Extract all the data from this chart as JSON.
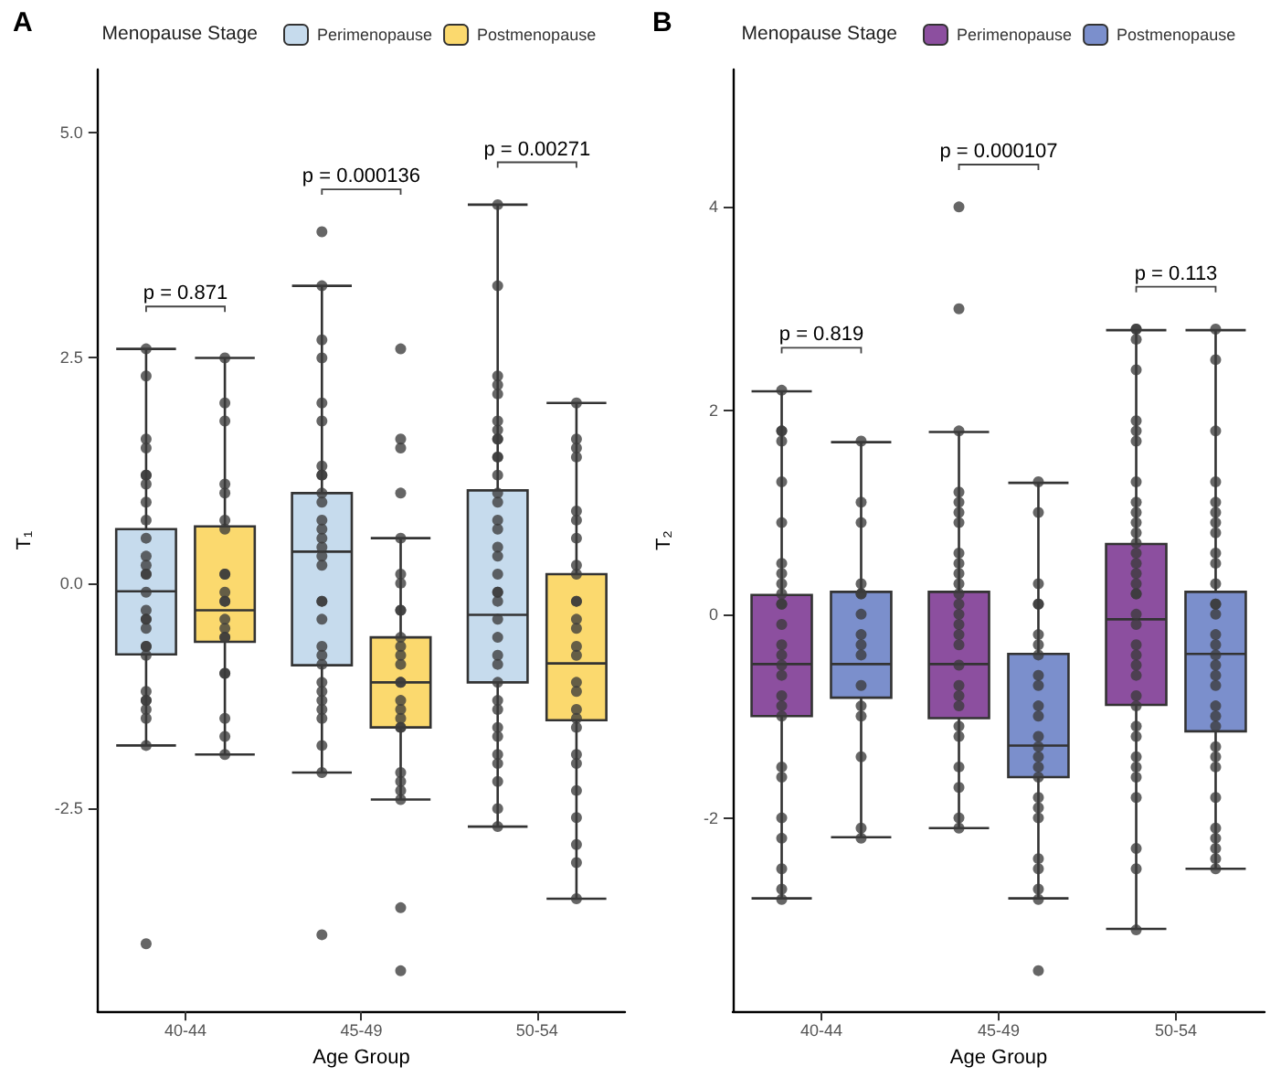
{
  "chart_data": [
    {
      "type": "box",
      "title": "A",
      "xlabel": "Age Group",
      "ylabel": "T₁",
      "legend_title": "Menopause Stage",
      "legend": "top",
      "grid": false,
      "marker": "circle",
      "categories": [
        "40-44",
        "45-49",
        "50-54"
      ],
      "ylim": [
        -4.75,
        5.7
      ],
      "yticks": [
        {
          "value": -2.5,
          "label": "-2.5"
        },
        {
          "value": 0,
          "label": "0.0"
        },
        {
          "value": 2.5,
          "label": "2.5"
        },
        {
          "value": 5,
          "label": "5.0"
        }
      ],
      "annotations": [
        "p = 0.871",
        "p = 0.000136",
        "p = 0.00271"
      ],
      "series": [
        {
          "name": "Perimenopause",
          "type": "box",
          "color": "#c6dbed",
          "boxes": [
            {
              "low": -1.8,
              "q1": -0.79,
              "median": -0.09,
              "q3": 0.6,
              "high": 2.6
            },
            {
              "low": -2.1,
              "q1": -0.91,
              "median": 0.35,
              "q3": 1.0,
              "high": 3.3
            },
            {
              "low": -2.7,
              "q1": -1.1,
              "median": -0.35,
              "q3": 1.03,
              "high": 4.2
            }
          ]
        },
        {
          "name": "Postmenopause",
          "type": "box",
          "color": "#fbd96e",
          "boxes": [
            {
              "low": -1.9,
              "q1": -0.65,
              "median": -0.3,
              "q3": 0.63,
              "high": 2.5
            },
            {
              "low": -2.4,
              "q1": -1.6,
              "median": -1.1,
              "q3": -0.6,
              "high": 0.5
            },
            {
              "low": -3.5,
              "q1": -1.52,
              "median": -0.89,
              "q3": 0.1,
              "high": 2.0
            }
          ]
        },
        {
          "type": "scatter",
          "color": "#3b3b3b",
          "x": [
            "40-44",
            "40-44",
            "40-44",
            "40-44",
            "40-44",
            "40-44",
            "40-44",
            "40-44",
            "40-44",
            "40-44",
            "40-44",
            "40-44",
            "40-44",
            "40-44",
            "40-44",
            "40-44",
            "40-44",
            "40-44",
            "40-44",
            "40-44",
            "40-44",
            "40-44",
            "40-44",
            "40-44",
            "40-44",
            "40-44",
            "40-44",
            "40-44",
            "40-44",
            "45-49",
            "45-49",
            "45-49",
            "45-49",
            "45-49",
            "45-49",
            "45-49",
            "45-49",
            "45-49",
            "45-49",
            "45-49",
            "45-49",
            "45-49",
            "45-49",
            "45-49",
            "45-49",
            "45-49",
            "45-49",
            "45-49",
            "45-49",
            "45-49",
            "45-49",
            "45-49",
            "45-49",
            "45-49",
            "45-49",
            "45-49",
            "45-49",
            "45-49",
            "45-49",
            "45-49",
            "50-54",
            "50-54",
            "50-54",
            "50-54",
            "50-54",
            "50-54",
            "50-54",
            "50-54",
            "50-54",
            "50-54",
            "50-54",
            "50-54",
            "50-54",
            "50-54",
            "50-54",
            "50-54",
            "50-54",
            "50-54",
            "50-54",
            "50-54",
            "50-54",
            "50-54",
            "50-54",
            "50-54",
            "50-54",
            "50-54",
            "50-54",
            "50-54",
            "50-54",
            "50-54",
            "50-54",
            "50-54",
            "50-54",
            "50-54",
            "50-54",
            "50-54"
          ],
          "values": [
            2.6,
            2.3,
            1.6,
            1.5,
            1.2,
            1.2,
            1.1,
            0.9,
            0.7,
            0.5,
            0.3,
            0.2,
            0.1,
            0.1,
            -0.1,
            -0.3,
            -0.4,
            -0.4,
            -0.5,
            -0.7,
            -0.7,
            -0.8,
            -1.2,
            -1.3,
            -1.3,
            -1.4,
            -1.5,
            -1.8,
            -4.0,
            3.9,
            3.3,
            2.7,
            2.5,
            2.0,
            1.8,
            1.3,
            1.2,
            1.2,
            1.0,
            0.9,
            0.7,
            0.6,
            0.5,
            0.4,
            0.3,
            0.2,
            -0.2,
            -0.2,
            -0.4,
            -0.7,
            -0.8,
            -0.9,
            -1.1,
            -1.2,
            -1.3,
            -1.4,
            -1.5,
            -1.8,
            -2.1,
            -3.9,
            4.2,
            3.3,
            2.3,
            2.2,
            2.1,
            1.8,
            1.7,
            1.6,
            1.6,
            1.4,
            1.4,
            1.2,
            1.0,
            0.9,
            0.7,
            0.6,
            0.4,
            0.3,
            0.1,
            -0.1,
            -0.2,
            -0.1,
            -0.4,
            -0.6,
            -0.8,
            -0.9,
            -1.1,
            -1.3,
            -1.4,
            -1.6,
            -1.7,
            -1.9,
            -2.0,
            -2.2,
            -2.5,
            -2.7
          ]
        },
        {
          "type": "scatter",
          "color": "#3b3b3b",
          "x": [
            "40-44",
            "40-44",
            "40-44",
            "40-44",
            "40-44",
            "40-44",
            "40-44",
            "40-44",
            "40-44",
            "40-44",
            "40-44",
            "40-44",
            "40-44",
            "40-44",
            "40-44",
            "40-44",
            "40-44",
            "40-44",
            "40-44",
            "40-44",
            "40-44",
            "45-49",
            "45-49",
            "45-49",
            "45-49",
            "45-49",
            "45-49",
            "45-49",
            "45-49",
            "45-49",
            "45-49",
            "45-49",
            "45-49",
            "45-49",
            "45-49",
            "45-49",
            "45-49",
            "45-49",
            "45-49",
            "45-49",
            "45-49",
            "45-49",
            "45-49",
            "45-49",
            "45-49",
            "45-49",
            "45-49",
            "50-54",
            "50-54",
            "50-54",
            "50-54",
            "50-54",
            "50-54",
            "50-54",
            "50-54",
            "50-54",
            "50-54",
            "50-54",
            "50-54",
            "50-54",
            "50-54",
            "50-54",
            "50-54",
            "50-54",
            "50-54",
            "50-54",
            "50-54",
            "50-54",
            "50-54",
            "50-54",
            "50-54",
            "50-54",
            "50-54",
            "50-54"
          ],
          "values": [
            2.5,
            2.0,
            1.8,
            1.1,
            1.0,
            0.7,
            0.6,
            0.1,
            0.1,
            -0.1,
            -0.2,
            -0.2,
            -0.4,
            -0.5,
            -0.6,
            -0.6,
            -1.0,
            -1.0,
            -1.5,
            -1.7,
            -1.9,
            2.6,
            1.6,
            1.5,
            1.0,
            0.5,
            0.1,
            0.0,
            -0.3,
            -0.3,
            -0.6,
            -0.7,
            -0.8,
            -0.9,
            -1.1,
            -1.1,
            -1.3,
            -1.4,
            -1.5,
            -1.6,
            -1.6,
            -2.1,
            -2.2,
            -2.3,
            -2.4,
            -3.6,
            -4.3,
            2.0,
            1.6,
            1.5,
            1.4,
            0.8,
            0.7,
            0.5,
            0.2,
            0.1,
            -0.2,
            -0.2,
            -0.4,
            -0.5,
            -0.7,
            -0.8,
            -1.1,
            -1.2,
            -1.4,
            -1.5,
            -1.6,
            -1.9,
            -2.0,
            -2.3,
            -2.6,
            -2.9,
            -3.1,
            -3.5
          ]
        }
      ]
    },
    {
      "type": "box",
      "title": "B",
      "xlabel": "Age Group",
      "ylabel": "T₂",
      "legend_title": "Menopause Stage",
      "legend": "top",
      "grid": false,
      "marker": "circle",
      "categories": [
        "40-44",
        "45-49",
        "50-54"
      ],
      "ylim": [
        -3.9,
        5.35
      ],
      "yticks": [
        -2,
        0,
        2,
        4
      ],
      "annotations": [
        "p = 0.819",
        "p = 0.000107",
        "p = 0.113"
      ],
      "series": [
        {
          "name": "Perimenopause",
          "type": "box",
          "color": "#8c4f9f",
          "boxes": [
            {
              "low": -2.79,
              "q1": -1.0,
              "median": -0.49,
              "q3": 0.19,
              "high": 2.19
            },
            {
              "low": -2.1,
              "q1": -1.02,
              "median": -0.49,
              "q3": 0.22,
              "high": 1.79
            },
            {
              "low": -3.09,
              "q1": -0.89,
              "median": -0.05,
              "q3": 0.69,
              "high": 2.79
            }
          ]
        },
        {
          "name": "Postmenopause",
          "type": "box",
          "color": "#7b8fcc",
          "boxes": [
            {
              "low": -2.19,
              "q1": -0.82,
              "median": -0.49,
              "q3": 0.22,
              "high": 1.69
            },
            {
              "low": -2.79,
              "q1": -1.6,
              "median": -1.29,
              "q3": -0.39,
              "high": 1.29
            },
            {
              "low": -2.5,
              "q1": -1.15,
              "median": -0.39,
              "q3": 0.22,
              "high": 2.79
            }
          ]
        },
        {
          "type": "scatter",
          "color": "#3b3b3b",
          "x": [
            "40-44",
            "40-44",
            "40-44",
            "40-44",
            "40-44",
            "40-44",
            "40-44",
            "40-44",
            "40-44",
            "40-44",
            "40-44",
            "40-44",
            "40-44",
            "40-44",
            "40-44",
            "40-44",
            "40-44",
            "40-44",
            "40-44",
            "40-44",
            "40-44",
            "40-44",
            "40-44",
            "40-44",
            "40-44",
            "40-44",
            "40-44",
            "45-49",
            "45-49",
            "45-49",
            "45-49",
            "45-49",
            "45-49",
            "45-49",
            "45-49",
            "45-49",
            "45-49",
            "45-49",
            "45-49",
            "45-49",
            "45-49",
            "45-49",
            "45-49",
            "45-49",
            "45-49",
            "45-49",
            "45-49",
            "45-49",
            "45-49",
            "45-49",
            "45-49",
            "45-49",
            "45-49",
            "45-49",
            "50-54",
            "50-54",
            "50-54",
            "50-54",
            "50-54",
            "50-54",
            "50-54",
            "50-54",
            "50-54",
            "50-54",
            "50-54",
            "50-54",
            "50-54",
            "50-54",
            "50-54",
            "50-54",
            "50-54",
            "50-54",
            "50-54",
            "50-54",
            "50-54",
            "50-54",
            "50-54",
            "50-54",
            "50-54",
            "50-54",
            "50-54",
            "50-54",
            "50-54",
            "50-54",
            "50-54",
            "50-54",
            "50-54",
            "50-54",
            "50-54",
            "50-54"
          ],
          "values": [
            2.2,
            1.8,
            1.8,
            1.7,
            1.3,
            0.9,
            0.5,
            0.4,
            0.3,
            0.2,
            0.1,
            0.1,
            -0.1,
            -0.3,
            -0.4,
            -0.5,
            -0.6,
            -0.8,
            -0.9,
            -1.0,
            -1.5,
            -1.6,
            -2.0,
            -2.2,
            -2.5,
            -2.7,
            -2.8,
            4.0,
            3.0,
            1.8,
            1.2,
            1.1,
            1.0,
            0.9,
            0.6,
            0.5,
            0.4,
            0.3,
            0.1,
            0.2,
            0.0,
            -0.1,
            -0.2,
            -0.3,
            -0.5,
            -0.7,
            -0.8,
            -0.9,
            -1.1,
            -1.2,
            -1.5,
            -1.7,
            -2.0,
            -2.1,
            2.8,
            2.8,
            2.7,
            2.4,
            1.9,
            1.8,
            1.7,
            1.3,
            1.1,
            1.0,
            0.9,
            0.8,
            0.7,
            0.6,
            0.5,
            0.4,
            0.3,
            0.2,
            0.2,
            0.0,
            -0.1,
            -0.3,
            -0.4,
            -0.5,
            -0.6,
            -0.8,
            -0.9,
            -1.1,
            -1.2,
            -1.4,
            -1.5,
            -1.6,
            -1.8,
            -2.3,
            -2.5,
            -3.1
          ]
        },
        {
          "type": "scatter",
          "color": "#3b3b3b",
          "x": [
            "40-44",
            "40-44",
            "40-44",
            "40-44",
            "40-44",
            "40-44",
            "40-44",
            "40-44",
            "40-44",
            "40-44",
            "40-44",
            "40-44",
            "40-44",
            "40-44",
            "40-44",
            "40-44",
            "45-49",
            "45-49",
            "45-49",
            "45-49",
            "45-49",
            "45-49",
            "45-49",
            "45-49",
            "45-49",
            "45-49",
            "45-49",
            "45-49",
            "45-49",
            "45-49",
            "45-49",
            "45-49",
            "45-49",
            "45-49",
            "45-49",
            "45-49",
            "45-49",
            "45-49",
            "45-49",
            "45-49",
            "45-49",
            "50-54",
            "50-54",
            "50-54",
            "50-54",
            "50-54",
            "50-54",
            "50-54",
            "50-54",
            "50-54",
            "50-54",
            "50-54",
            "50-54",
            "50-54",
            "50-54",
            "50-54",
            "50-54",
            "50-54",
            "50-54",
            "50-54",
            "50-54",
            "50-54",
            "50-54",
            "50-54",
            "50-54",
            "50-54",
            "50-54",
            "50-54",
            "50-54",
            "50-54",
            "50-54",
            "50-54",
            "50-54"
          ],
          "values": [
            1.7,
            1.1,
            0.9,
            0.3,
            0.2,
            0.2,
            0.0,
            -0.2,
            -0.3,
            -0.4,
            -0.7,
            -0.9,
            -1.0,
            -1.4,
            -2.1,
            -2.2,
            1.3,
            1.0,
            0.3,
            0.1,
            0.1,
            -0.2,
            -0.3,
            -0.4,
            -0.6,
            -0.7,
            -0.9,
            -1.0,
            -1.2,
            -1.3,
            -1.4,
            -1.5,
            -1.6,
            -1.8,
            -1.9,
            -2.0,
            -2.4,
            -2.5,
            -2.7,
            -2.8,
            -3.5,
            2.8,
            2.5,
            1.8,
            1.3,
            1.1,
            1.0,
            0.9,
            0.8,
            0.6,
            0.5,
            0.3,
            0.1,
            0.1,
            0.0,
            -0.2,
            -0.3,
            -0.4,
            -0.5,
            -0.6,
            -0.7,
            -0.9,
            -1.0,
            -1.1,
            -1.3,
            -1.4,
            -1.5,
            -1.8,
            -2.1,
            -2.2,
            -2.3,
            -2.4,
            -2.5
          ]
        }
      ]
    }
  ]
}
